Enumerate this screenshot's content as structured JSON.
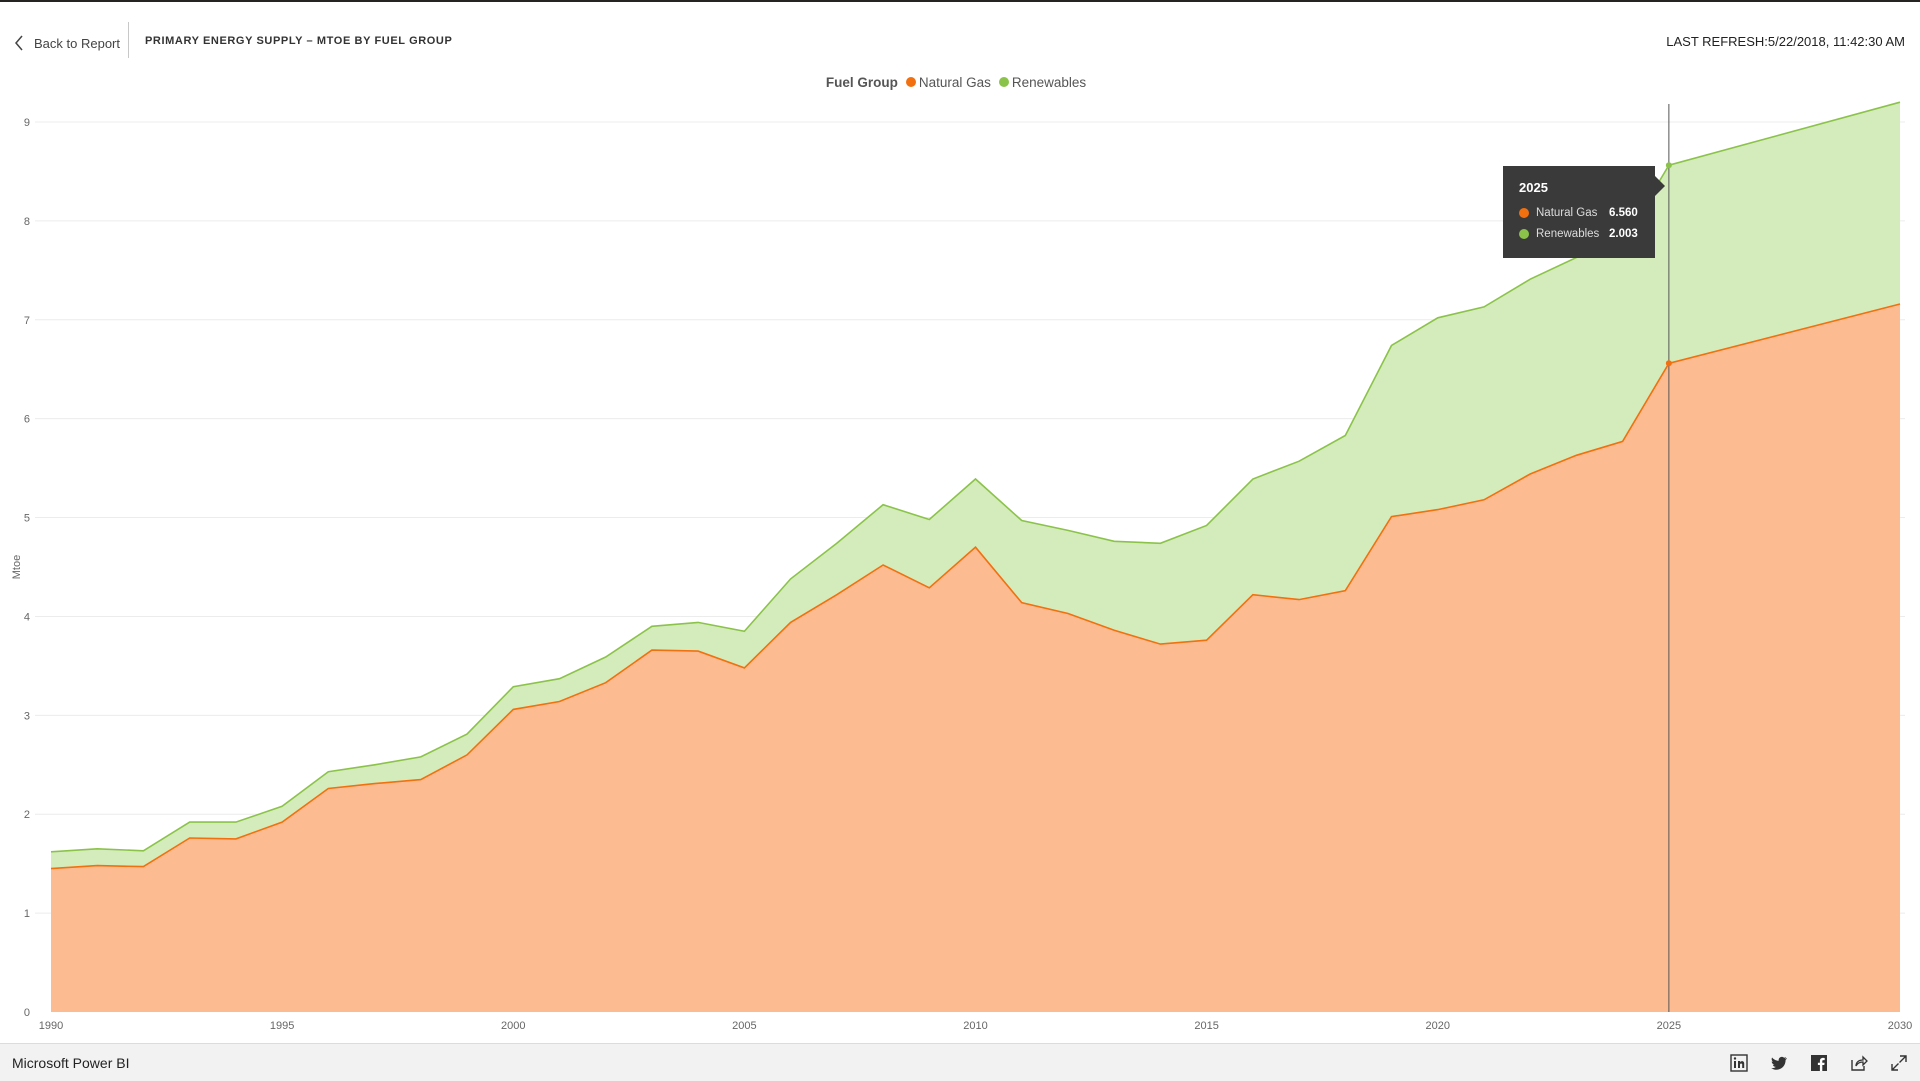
{
  "header": {
    "back_label": "Back to Report",
    "report_title": "PRIMARY ENERGY SUPPLY – MTOE BY FUEL GROUP",
    "last_refresh": "LAST REFRESH:5/22/2018, 11:42:30 AM"
  },
  "legend": {
    "title": "Fuel Group",
    "items": [
      {
        "label": "Natural Gas",
        "color": "#f2700f"
      },
      {
        "label": "Renewables",
        "color": "#8bc34a"
      }
    ]
  },
  "tooltip": {
    "title": "2025",
    "rows": [
      {
        "label": "Natural Gas",
        "value": "6.560",
        "color": "#f2700f"
      },
      {
        "label": "Renewables",
        "value": "2.003",
        "color": "#8bc34a"
      }
    ]
  },
  "footer": {
    "brand": "Microsoft Power BI",
    "icons": [
      "linkedin-icon",
      "twitter-icon",
      "facebook-icon",
      "share-icon",
      "fullscreen-icon"
    ]
  },
  "chart_data": {
    "type": "area",
    "stacked": true,
    "title": "",
    "xlabel": "",
    "ylabel": "Mtoe",
    "xlim": [
      1990,
      2030
    ],
    "ylim": [
      0,
      9
    ],
    "x_ticks": [
      1990,
      1995,
      2000,
      2005,
      2010,
      2015,
      2020,
      2025,
      2030
    ],
    "y_ticks": [
      0,
      1,
      2,
      3,
      4,
      5,
      6,
      7,
      8,
      9
    ],
    "grid": true,
    "legend_position": "top-center",
    "x": [
      1990,
      1991,
      1992,
      1993,
      1994,
      1995,
      1996,
      1997,
      1998,
      1999,
      2000,
      2001,
      2002,
      2003,
      2004,
      2005,
      2006,
      2007,
      2008,
      2009,
      2010,
      2011,
      2012,
      2013,
      2014,
      2015,
      2016,
      2017,
      2018,
      2019,
      2020,
      2021,
      2022,
      2023,
      2024,
      2025,
      2030
    ],
    "series": [
      {
        "name": "Natural Gas",
        "color": "#f2700f",
        "fill": "#fdbb92",
        "values": [
          1.45,
          1.48,
          1.47,
          1.76,
          1.75,
          1.92,
          2.26,
          2.31,
          2.35,
          2.6,
          3.06,
          3.14,
          3.33,
          3.66,
          3.65,
          3.48,
          3.94,
          4.22,
          4.52,
          4.29,
          4.7,
          4.14,
          4.03,
          3.86,
          3.72,
          3.76,
          4.22,
          4.17,
          4.26,
          5.01,
          5.08,
          5.18,
          5.44,
          5.63,
          5.77,
          6.56,
          7.16
        ]
      },
      {
        "name": "Renewables",
        "color": "#8bc34a",
        "fill": "#d4ecbb",
        "values": [
          0.17,
          0.17,
          0.16,
          0.16,
          0.17,
          0.16,
          0.17,
          0.19,
          0.23,
          0.21,
          0.23,
          0.23,
          0.26,
          0.24,
          0.29,
          0.37,
          0.44,
          0.52,
          0.61,
          0.69,
          0.69,
          0.83,
          0.84,
          0.9,
          1.02,
          1.16,
          1.17,
          1.4,
          1.57,
          1.73,
          1.94,
          1.95,
          1.97,
          2.0,
          2.01,
          2.003,
          2.04
        ]
      }
    ],
    "hover_year": 2025
  }
}
